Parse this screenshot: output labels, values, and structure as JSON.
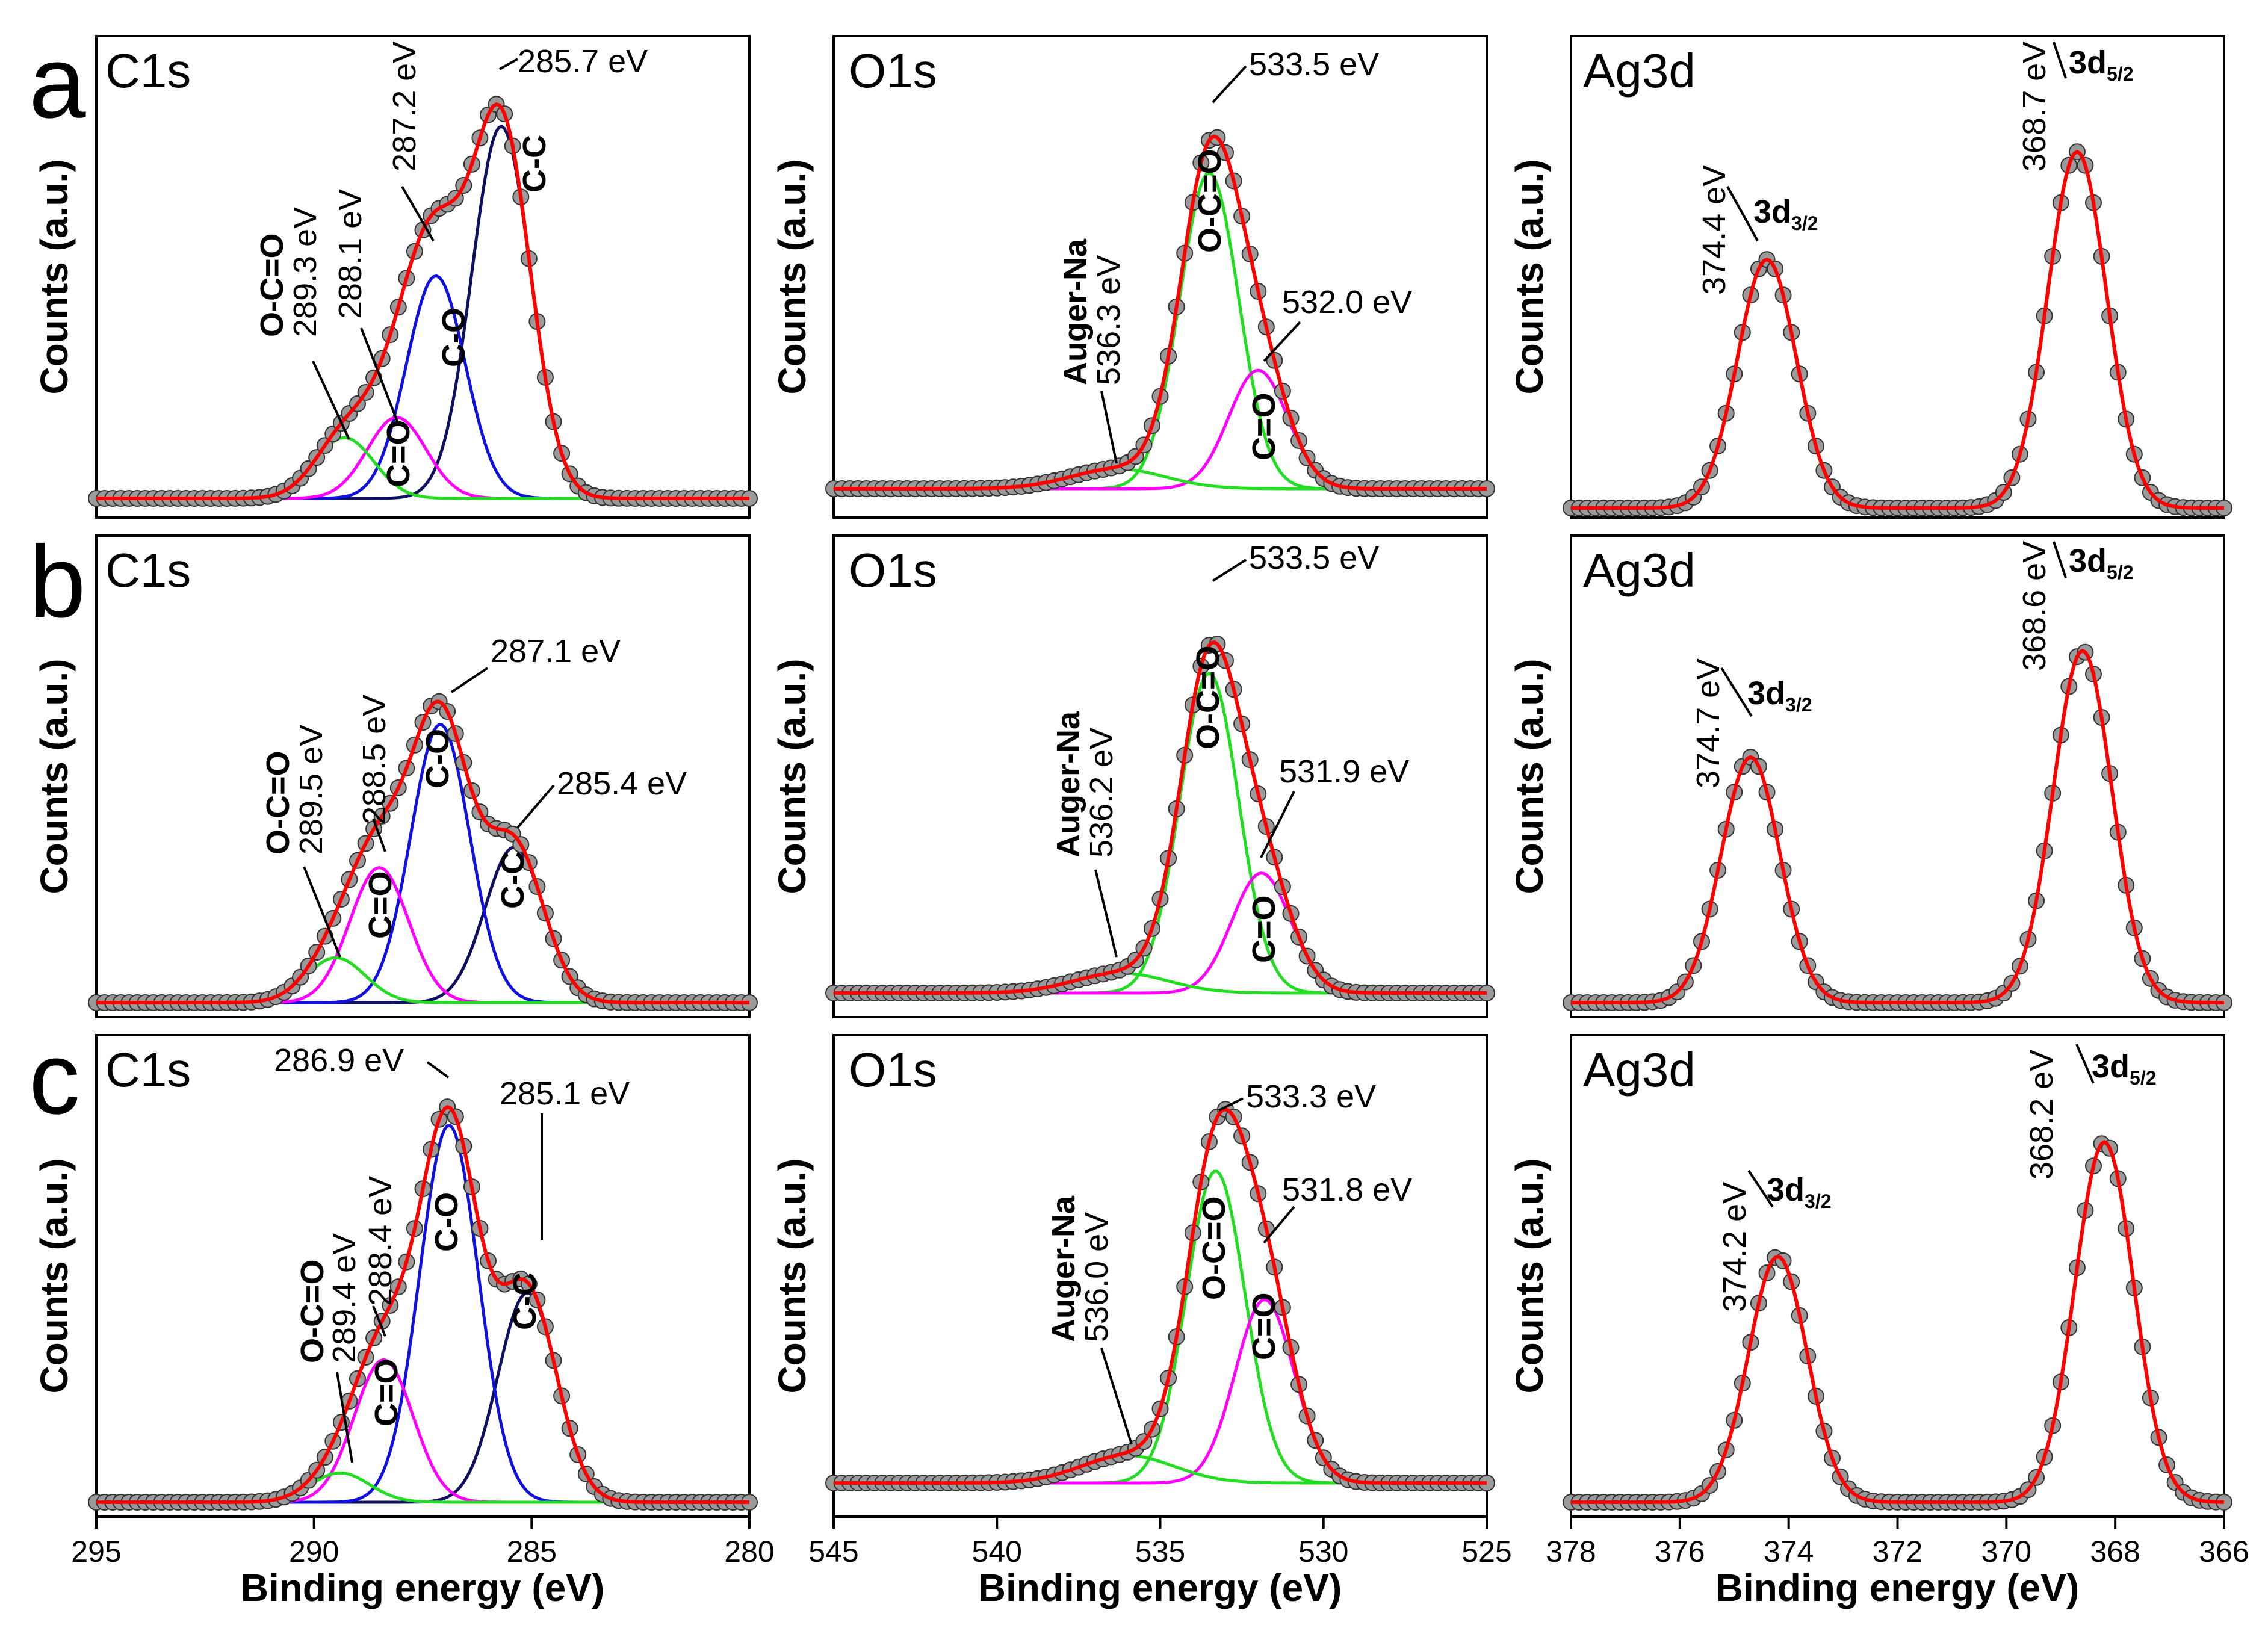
{
  "chart_data": [
    {
      "type": "line",
      "row": "a",
      "core_level": "C1s",
      "xlim": [
        295,
        280
      ],
      "ylabel": "Counts (a.u.)",
      "peaks": [
        {
          "center": 285.7,
          "bond": "C-C",
          "label": "285.7 eV",
          "rel_height": 0.92
        },
        {
          "center": 287.2,
          "bond": "C-O",
          "label": "287.2 eV",
          "rel_height": 0.55
        },
        {
          "center": 288.1,
          "bond": "C=O",
          "label": "288.1 eV",
          "rel_height": 0.2
        },
        {
          "center": 289.3,
          "bond": "O-C=O",
          "label": "289.3 eV",
          "rel_height": 0.15
        }
      ]
    },
    {
      "type": "line",
      "row": "a",
      "core_level": "O1s",
      "xlim": [
        545,
        525
      ],
      "ylabel": "Counts (a.u.)",
      "peaks": [
        {
          "center": 533.5,
          "bond": "O-C=O",
          "label": "533.5 eV",
          "rel_height": 0.8
        },
        {
          "center": 532.0,
          "bond": "C=O",
          "label": "532.0 eV",
          "rel_height": 0.3
        },
        {
          "center": 536.3,
          "bond": "Auger-Na",
          "label": "536.3 eV",
          "rel_height": 0.05
        }
      ]
    },
    {
      "type": "line",
      "row": "a",
      "core_level": "Ag3d",
      "xlim": [
        378,
        366
      ],
      "ylabel": "Counts (a.u.)",
      "peaks": [
        {
          "center": 368.7,
          "bond": "3d5/2",
          "label": "368.7 eV",
          "rel_height": 0.86
        },
        {
          "center": 374.4,
          "bond": "3d3/2",
          "label": "374.4 eV",
          "rel_height": 0.6
        }
      ]
    },
    {
      "type": "line",
      "row": "b",
      "core_level": "C1s",
      "xlim": [
        295,
        280
      ],
      "ylabel": "Counts (a.u.)",
      "peaks": [
        {
          "center": 285.4,
          "bond": "C-C",
          "label": "285.4 eV",
          "rel_height": 0.38
        },
        {
          "center": 287.1,
          "bond": "C-O",
          "label": "287.1 eV",
          "rel_height": 0.68
        },
        {
          "center": 288.5,
          "bond": "C=O",
          "label": "288.5 eV",
          "rel_height": 0.33
        },
        {
          "center": 289.5,
          "bond": "O-C=O",
          "label": "289.5 eV",
          "rel_height": 0.11
        }
      ]
    },
    {
      "type": "line",
      "row": "b",
      "core_level": "O1s",
      "xlim": [
        545,
        525
      ],
      "ylabel": "Counts (a.u.)",
      "peaks": [
        {
          "center": 533.5,
          "bond": "O-C=O",
          "label": "533.5 eV",
          "rel_height": 0.8
        },
        {
          "center": 531.9,
          "bond": "C=O",
          "label": "531.9 eV",
          "rel_height": 0.3
        },
        {
          "center": 536.2,
          "bond": "Auger-Na",
          "label": "536.2 eV",
          "rel_height": 0.05
        }
      ]
    },
    {
      "type": "line",
      "row": "b",
      "core_level": "Ag3d",
      "xlim": [
        378,
        366
      ],
      "ylabel": "Counts (a.u.)",
      "peaks": [
        {
          "center": 368.6,
          "bond": "3d5/2",
          "label": "368.6 eV",
          "rel_height": 0.86
        },
        {
          "center": 374.7,
          "bond": "3d3/2",
          "label": "374.7 eV",
          "rel_height": 0.6
        }
      ]
    },
    {
      "type": "line",
      "row": "c",
      "core_level": "C1s",
      "xlim": [
        295,
        280
      ],
      "ylabel": "Counts (a.u.)",
      "xlabel": "Binding energy (eV)",
      "xticks": [
        "295",
        "290",
        "285",
        "280"
      ],
      "peaks": [
        {
          "center": 285.1,
          "bond": "C-C",
          "label": "285.1 eV",
          "rel_height": 0.5
        },
        {
          "center": 286.9,
          "bond": "C-O",
          "label": "286.9 eV",
          "rel_height": 0.9
        },
        {
          "center": 288.4,
          "bond": "C=O",
          "label": "288.4 eV",
          "rel_height": 0.34
        },
        {
          "center": 289.4,
          "bond": "O-C=O",
          "label": "289.4 eV",
          "rel_height": 0.07
        }
      ]
    },
    {
      "type": "line",
      "row": "c",
      "core_level": "O1s",
      "xlim": [
        545,
        525
      ],
      "ylabel": "Counts (a.u.)",
      "xlabel": "Binding energy (eV)",
      "xticks": [
        "545",
        "540",
        "535",
        "530",
        "525"
      ],
      "peaks": [
        {
          "center": 533.3,
          "bond": "O-C=O",
          "label": "533.3 eV",
          "rel_height": 0.8
        },
        {
          "center": 531.8,
          "bond": "C=O",
          "label": "531.8 eV",
          "rel_height": 0.47
        },
        {
          "center": 536.0,
          "bond": "Auger-Na",
          "label": "536.0 eV",
          "rel_height": 0.07
        }
      ]
    },
    {
      "type": "line",
      "row": "c",
      "core_level": "Ag3d",
      "xlim": [
        378,
        366
      ],
      "ylabel": "Counts (a.u.)",
      "xlabel": "Binding energy (eV)",
      "xticks": [
        "378",
        "376",
        "374",
        "372",
        "370",
        "368",
        "366"
      ],
      "peaks": [
        {
          "center": 368.2,
          "bond": "3d5/2",
          "label": "368.2 eV",
          "rel_height": 0.88
        },
        {
          "center": 374.2,
          "bond": "3d3/2",
          "label": "374.2 eV",
          "rel_height": 0.6
        }
      ]
    }
  ],
  "row_letters": [
    "a",
    "b",
    "c"
  ],
  "subscripts": {
    "d52": "5/2",
    "d32": "3/2"
  },
  "colors": {
    "envelope": "#ff0000",
    "data_points": "#9a9a9a",
    "c_c": "#101060",
    "c_o": "#1010e0",
    "c_eq_o": "#ff00ff",
    "o_c_eq_o": "#22dd22",
    "ag": "#ff0000"
  }
}
